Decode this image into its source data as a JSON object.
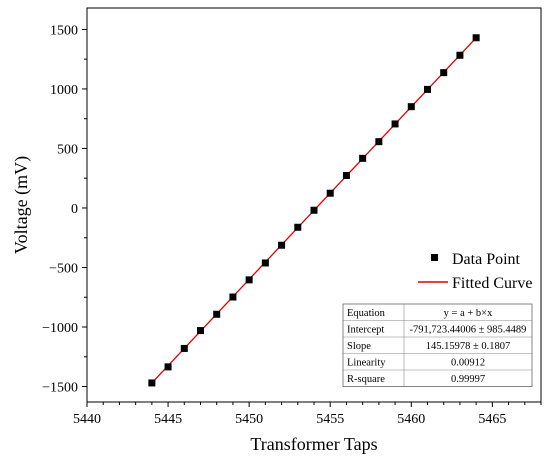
{
  "chart_data": {
    "type": "scatter",
    "xlabel": "Transformer Taps",
    "ylabel": "Voltage (mV)",
    "xlim": [
      5440,
      5468
    ],
    "ylim": [
      -1630,
      1680
    ],
    "xticks": [
      5440,
      5445,
      5450,
      5455,
      5460,
      5465
    ],
    "yticks": [
      -1500,
      -1000,
      -500,
      0,
      500,
      1000,
      1500
    ],
    "ytick_labels": [
      "−1500",
      "−1000",
      "−500",
      "0",
      "500",
      "1000",
      "1500"
    ],
    "grid": false,
    "series": [
      {
        "name": "Data Point",
        "kind": "scatter",
        "marker": "square",
        "color": "#000000",
        "x": [
          5444,
          5445,
          5446,
          5447,
          5448,
          5449,
          5450,
          5451,
          5452,
          5453,
          5454,
          5455,
          5456,
          5457,
          5458,
          5459,
          5460,
          5461,
          5462,
          5463,
          5464
        ],
        "y": [
          -1470,
          -1335,
          -1180,
          -1030,
          -893,
          -748,
          -604,
          -462,
          -313,
          -162,
          -19,
          124,
          273,
          417,
          557,
          706,
          851,
          996,
          1137,
          1283,
          1430
        ]
      },
      {
        "name": "Fitted Curve",
        "kind": "line",
        "color": "#e00000",
        "x": [
          5444,
          5464
        ],
        "y": [
          -1470,
          1430
        ]
      }
    ],
    "legend": {
      "position": "right",
      "entries": [
        "Data Point",
        "Fitted Curve"
      ]
    },
    "fit_table": {
      "rows": [
        [
          "Equation",
          "y = a + b×x"
        ],
        [
          "Intercept",
          "-791,723.44006 ± 985.4489"
        ],
        [
          "Slope",
          "145.15978 ± 0.1807"
        ],
        [
          "Linearity",
          "0.00912"
        ],
        [
          "R-square",
          "0.99997"
        ]
      ]
    }
  }
}
